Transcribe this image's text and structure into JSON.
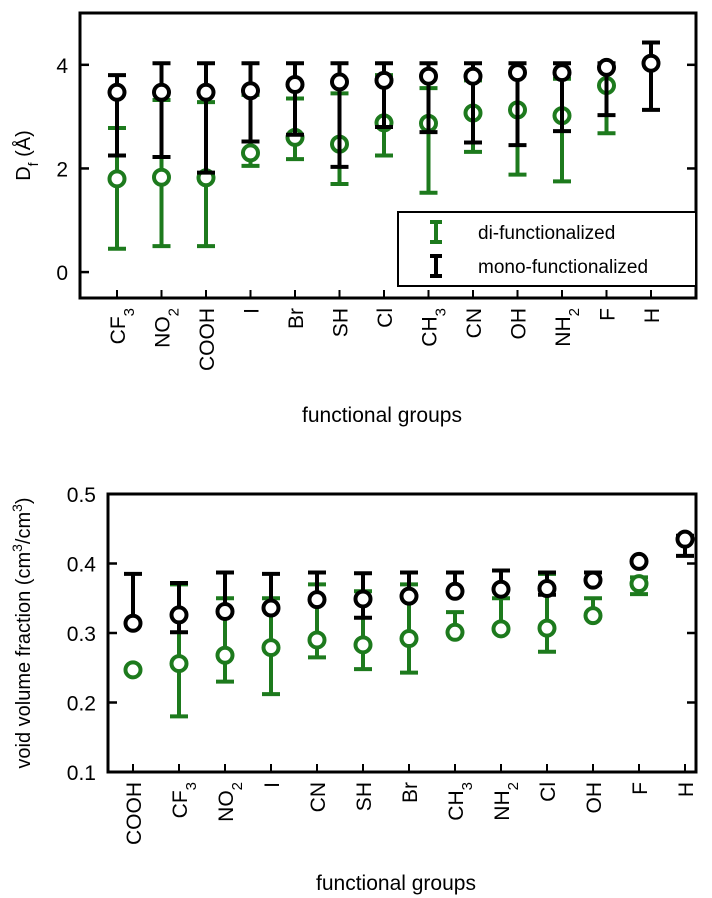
{
  "colors": {
    "di": "#1d7a1d",
    "mono": "#000000"
  },
  "chart_data": [
    {
      "type": "scatter",
      "xlabel": "functional groups",
      "ylabel": "D_f (Å)",
      "ylim": [
        -0.5,
        5.0
      ],
      "yticks": [
        "0",
        "2",
        "4"
      ],
      "categories": [
        "CF_3",
        "NO_2",
        "COOH",
        "I",
        "Br",
        "SH",
        "Cl",
        "CH_3",
        "CN",
        "OH",
        "NH_2",
        "F",
        "H"
      ],
      "legend": {
        "placement": "bottom-right",
        "entries": [
          "di-functionalized",
          "mono-functionalized"
        ]
      },
      "series": [
        {
          "name": "di-functionalized",
          "y": [
            1.8,
            1.83,
            1.82,
            2.3,
            2.6,
            2.47,
            2.88,
            2.87,
            3.07,
            3.13,
            3.02,
            3.6,
            null
          ],
          "low": [
            0.45,
            0.5,
            0.5,
            2.05,
            2.18,
            1.7,
            2.25,
            1.53,
            2.32,
            1.88,
            1.75,
            2.68,
            null
          ],
          "high": [
            2.78,
            3.32,
            3.28,
            3.42,
            3.35,
            3.45,
            3.8,
            3.55,
            3.7,
            3.85,
            3.73,
            4.02,
            null
          ]
        },
        {
          "name": "mono-functionalized",
          "y": [
            3.47,
            3.47,
            3.47,
            3.5,
            3.62,
            3.67,
            3.7,
            3.78,
            3.78,
            3.85,
            3.85,
            3.95,
            4.03
          ],
          "low": [
            2.25,
            2.22,
            1.92,
            2.52,
            2.65,
            2.03,
            2.8,
            2.7,
            2.5,
            2.45,
            2.72,
            3.03,
            3.13
          ],
          "high": [
            3.8,
            4.03,
            4.03,
            4.03,
            4.03,
            4.03,
            4.03,
            4.03,
            4.03,
            4.03,
            4.03,
            4.03,
            4.43
          ]
        }
      ]
    },
    {
      "type": "scatter",
      "xlabel": "functional groups",
      "ylabel": "void volume fraction (cm^3/cm^3)",
      "ylim": [
        0.1,
        0.5
      ],
      "yticks": [
        "0.1",
        "0.2",
        "0.3",
        "0.4",
        "0.5"
      ],
      "categories": [
        "COOH",
        "CF_3",
        "NO_2",
        "I",
        "CN",
        "SH",
        "Br",
        "CH_3",
        "NH_2",
        "Cl",
        "OH",
        "F",
        "H"
      ],
      "series": [
        {
          "name": "di-functionalized",
          "y": [
            0.247,
            0.256,
            0.268,
            0.279,
            0.29,
            0.283,
            0.292,
            0.301,
            0.306,
            0.307,
            0.325,
            0.371,
            null
          ],
          "low": [
            0.247,
            0.18,
            0.23,
            0.212,
            0.265,
            0.248,
            0.243,
            0.301,
            0.306,
            0.273,
            0.325,
            0.356,
            null
          ],
          "high": [
            0.247,
            0.37,
            0.35,
            0.35,
            0.37,
            0.36,
            0.37,
            0.33,
            0.35,
            0.385,
            0.35,
            0.38,
            null
          ]
        },
        {
          "name": "mono-functionalized",
          "y": [
            0.314,
            0.326,
            0.331,
            0.336,
            0.348,
            0.349,
            0.353,
            0.36,
            0.363,
            0.364,
            0.376,
            0.403,
            0.435
          ],
          "low": [
            0.314,
            0.301,
            0.331,
            0.336,
            0.348,
            0.322,
            0.353,
            0.36,
            0.363,
            0.355,
            0.376,
            0.403,
            0.411
          ],
          "high": [
            0.385,
            0.372,
            0.387,
            0.385,
            0.387,
            0.386,
            0.387,
            0.387,
            0.39,
            0.387,
            0.387,
            0.403,
            0.44
          ]
        }
      ]
    }
  ]
}
